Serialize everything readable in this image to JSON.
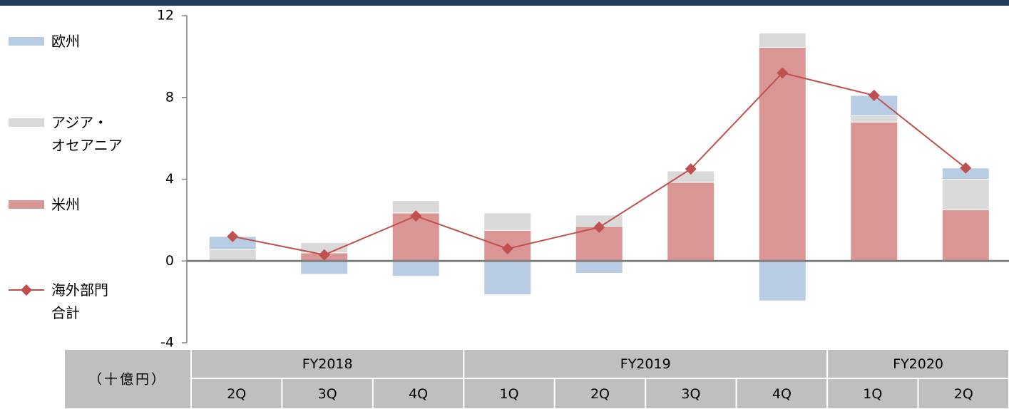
{
  "chart_data": {
    "type": "bar",
    "stacked": true,
    "unit_label": "（十億円）",
    "categories": [
      "2Q",
      "3Q",
      "4Q",
      "1Q",
      "2Q",
      "3Q",
      "4Q",
      "1Q",
      "2Q"
    ],
    "category_groups": [
      "FY2018",
      "FY2018",
      "FY2018",
      "FY2019",
      "FY2019",
      "FY2019",
      "FY2019",
      "FY2020",
      "FY2020"
    ],
    "series": [
      {
        "name": "米州",
        "color": "#da9694",
        "type": "bar",
        "values": [
          0,
          0.4,
          2.35,
          1.5,
          1.7,
          3.85,
          10.45,
          6.8,
          2.5
        ]
      },
      {
        "name": "アジア・\nオセアニア",
        "color": "#d9d9d9",
        "type": "bar",
        "values": [
          0.55,
          0.5,
          0.6,
          0.85,
          0.55,
          0.55,
          0.7,
          0.3,
          1.5
        ]
      },
      {
        "name": "欧州",
        "color": "#b8cce4",
        "type": "bar",
        "values": [
          0.65,
          -0.65,
          -0.75,
          -1.65,
          -0.6,
          0,
          -1.95,
          1.0,
          0.55
        ]
      },
      {
        "name": "海外部門\n合計",
        "color": "#c0504d",
        "type": "line",
        "values": [
          1.2,
          0.3,
          2.2,
          0.6,
          1.65,
          4.5,
          9.2,
          8.1,
          4.55
        ]
      }
    ],
    "legend_order": [
      2,
      1,
      0,
      3
    ],
    "ylim": [
      -4,
      12
    ],
    "yticks": [
      -4,
      0,
      4,
      8,
      12
    ]
  }
}
